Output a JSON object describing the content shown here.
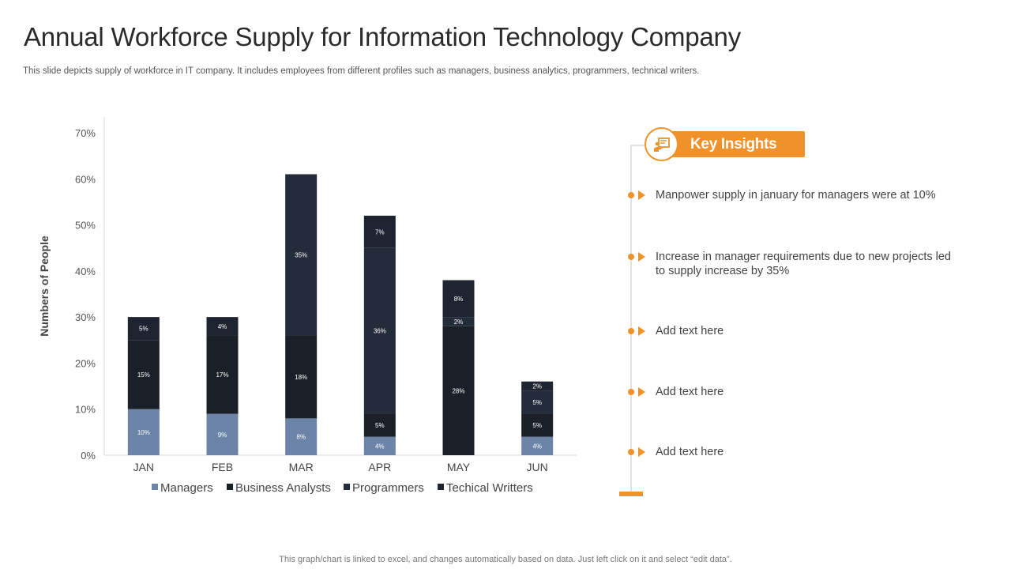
{
  "title": "Annual Workforce Supply for Information Technology Company",
  "subtitle": "This slide depicts supply of workforce in IT company. It includes employees from different profiles such as managers, business analytics, programmers, technical writers.",
  "footer": "This graph/chart is linked to excel,  and changes automatically based on data. Just left click on it and select “edit data”.",
  "colors": {
    "managers": "#6b84a8",
    "business_analysts": "#1b1f27",
    "programmers": "#242c3b",
    "technical_writers": "#1e2430",
    "accent": "#f0922b",
    "axis": "#d9d9d9"
  },
  "chart_data": {
    "type": "bar",
    "stacked": true,
    "title": "",
    "xlabel": "",
    "ylabel": "Numbers of People",
    "ylim": [
      0,
      70
    ],
    "yticks": [
      "0%",
      "10%",
      "20%",
      "30%",
      "40%",
      "50%",
      "60%",
      "70%"
    ],
    "categories": [
      "JAN",
      "FEB",
      "MAR",
      "APR",
      "MAY",
      "JUN"
    ],
    "legend_position": "bottom",
    "series": [
      {
        "name": "Managers",
        "values": [
          10,
          9,
          8,
          4,
          0,
          4
        ],
        "labels": [
          "10%",
          "9%",
          "8%",
          "4%",
          "",
          "4%"
        ]
      },
      {
        "name": "Business Analysts",
        "values": [
          15,
          17,
          18,
          5,
          28,
          5
        ],
        "labels": [
          "15%",
          "17%",
          "18%",
          "5%",
          "28%",
          "5%"
        ]
      },
      {
        "name": "Programmers",
        "values": [
          0,
          0,
          35,
          36,
          2,
          5
        ],
        "labels": [
          "",
          "",
          "35%",
          "36%",
          "2%",
          "5%"
        ]
      },
      {
        "name": "Techical Writters",
        "values": [
          5,
          4,
          0,
          7,
          8,
          2
        ],
        "labels": [
          "5%",
          "4%",
          "",
          "7%",
          "8%",
          "2%"
        ]
      }
    ]
  },
  "insights": {
    "header": "Key Insights",
    "icon": "presentation-board-icon",
    "items": [
      "Manpower supply in january for managers were at 10%",
      "Increase in manager requirements due to new projects led to supply increase by 35%",
      "Add text here",
      "Add text here",
      "Add text here"
    ]
  }
}
